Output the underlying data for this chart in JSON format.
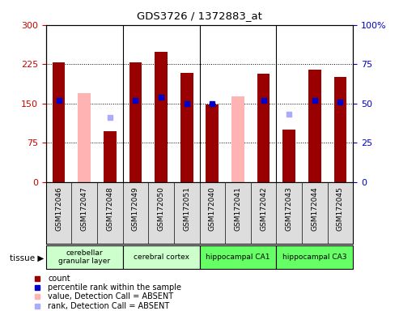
{
  "title": "GDS3726 / 1372883_at",
  "samples": [
    "GSM172046",
    "GSM172047",
    "GSM172048",
    "GSM172049",
    "GSM172050",
    "GSM172051",
    "GSM172040",
    "GSM172041",
    "GSM172042",
    "GSM172043",
    "GSM172044",
    "GSM172045"
  ],
  "count_values": [
    228,
    null,
    97,
    228,
    248,
    208,
    148,
    null,
    207,
    100,
    215,
    200
  ],
  "absent_values": [
    null,
    170,
    null,
    null,
    null,
    null,
    null,
    163,
    null,
    null,
    null,
    null
  ],
  "percentile_present": [
    52,
    null,
    null,
    52,
    54,
    50,
    50,
    null,
    52,
    null,
    52,
    51
  ],
  "percentile_absent": [
    null,
    null,
    41,
    null,
    null,
    null,
    null,
    null,
    null,
    43,
    null,
    null
  ],
  "group_info": [
    {
      "start": 0,
      "end": 3,
      "label": "cerebellar\ngranular layer",
      "color": "#ccffcc"
    },
    {
      "start": 3,
      "end": 6,
      "label": "cerebral cortex",
      "color": "#ccffcc"
    },
    {
      "start": 6,
      "end": 9,
      "label": "hippocampal CA1",
      "color": "#66ff66"
    },
    {
      "start": 9,
      "end": 12,
      "label": "hippocampal CA3",
      "color": "#66ff66"
    }
  ],
  "ylim_left": [
    0,
    300
  ],
  "ylim_right": [
    0,
    100
  ],
  "yticks_left": [
    0,
    75,
    150,
    225,
    300
  ],
  "yticks_right": [
    0,
    25,
    50,
    75,
    100
  ],
  "count_color": "#990000",
  "absent_color": "#ffb3b3",
  "percentile_present_color": "#0000cc",
  "percentile_absent_color": "#aaaaff",
  "left_tick_color": "#cc0000",
  "right_tick_color": "#0000cc",
  "sample_label_bg": "#dddddd",
  "bar_width": 0.5
}
